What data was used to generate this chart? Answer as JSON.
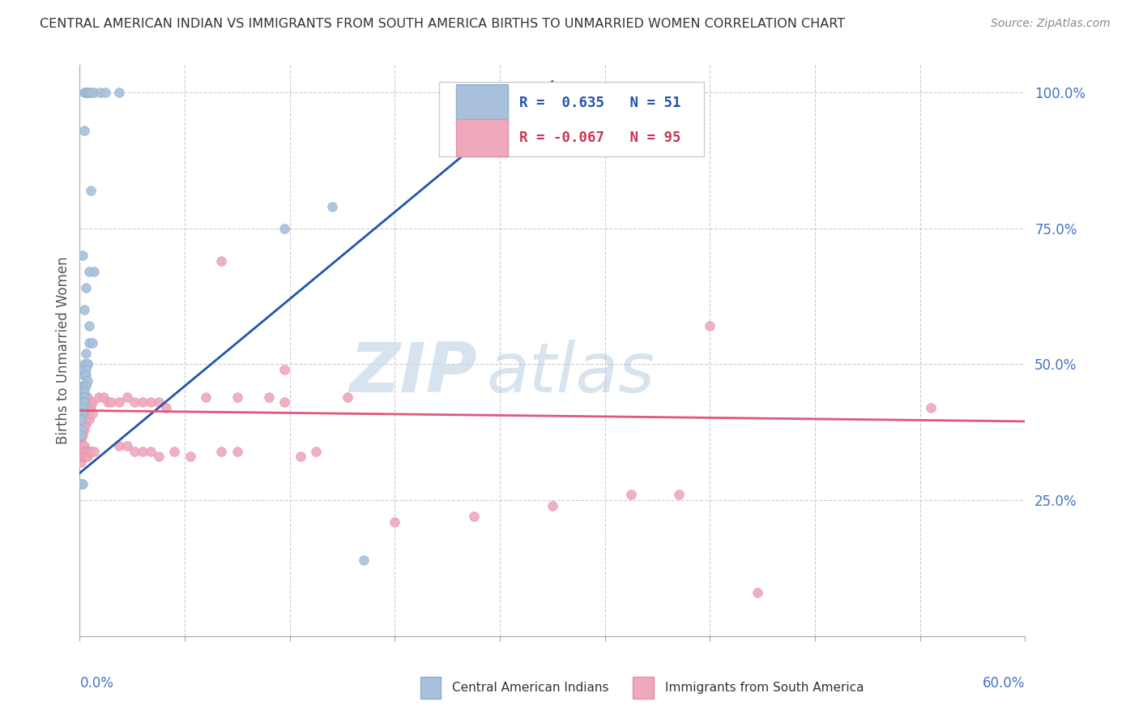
{
  "title": "CENTRAL AMERICAN INDIAN VS IMMIGRANTS FROM SOUTH AMERICA BIRTHS TO UNMARRIED WOMEN CORRELATION CHART",
  "source": "Source: ZipAtlas.com",
  "ylabel": "Births to Unmarried Women",
  "legend_blue_label": "Central American Indians",
  "legend_pink_label": "Immigrants from South America",
  "blue_color": "#a8c0dc",
  "blue_edge_color": "#8aaece",
  "pink_color": "#f0a8bc",
  "pink_edge_color": "#e090a8",
  "blue_line_color": "#2255aa",
  "pink_line_color": "#e05878",
  "watermark_zip": "ZIP",
  "watermark_atlas": "atlas",
  "blue_scatter": [
    [
      0.003,
      1.0
    ],
    [
      0.004,
      1.0
    ],
    [
      0.005,
      1.0
    ],
    [
      0.006,
      1.0
    ],
    [
      0.007,
      1.0
    ],
    [
      0.009,
      1.0
    ],
    [
      0.013,
      1.0
    ],
    [
      0.016,
      1.0
    ],
    [
      0.003,
      0.93
    ],
    [
      0.007,
      0.82
    ],
    [
      0.002,
      0.7
    ],
    [
      0.006,
      0.67
    ],
    [
      0.009,
      0.67
    ],
    [
      0.004,
      0.64
    ],
    [
      0.003,
      0.6
    ],
    [
      0.006,
      0.57
    ],
    [
      0.006,
      0.54
    ],
    [
      0.008,
      0.54
    ],
    [
      0.004,
      0.52
    ],
    [
      0.003,
      0.5
    ],
    [
      0.005,
      0.5
    ],
    [
      0.005,
      0.5
    ],
    [
      0.002,
      0.49
    ],
    [
      0.004,
      0.49
    ],
    [
      0.003,
      0.48
    ],
    [
      0.004,
      0.48
    ],
    [
      0.005,
      0.47
    ],
    [
      0.002,
      0.46
    ],
    [
      0.003,
      0.46
    ],
    [
      0.004,
      0.46
    ],
    [
      0.002,
      0.45
    ],
    [
      0.003,
      0.45
    ],
    [
      0.002,
      0.44
    ],
    [
      0.003,
      0.44
    ],
    [
      0.001,
      0.43
    ],
    [
      0.002,
      0.43
    ],
    [
      0.003,
      0.43
    ],
    [
      0.001,
      0.42
    ],
    [
      0.002,
      0.42
    ],
    [
      0.001,
      0.41
    ],
    [
      0.002,
      0.41
    ],
    [
      0.001,
      0.4
    ],
    [
      0.001,
      0.4
    ],
    [
      0.001,
      0.38
    ],
    [
      0.001,
      0.37
    ],
    [
      0.001,
      0.28
    ],
    [
      0.002,
      0.28
    ],
    [
      0.16,
      0.79
    ],
    [
      0.13,
      0.75
    ],
    [
      0.18,
      0.14
    ],
    [
      0.025,
      1.0
    ]
  ],
  "pink_scatter": [
    [
      0.001,
      0.44
    ],
    [
      0.001,
      0.43
    ],
    [
      0.001,
      0.42
    ],
    [
      0.001,
      0.41
    ],
    [
      0.001,
      0.4
    ],
    [
      0.001,
      0.39
    ],
    [
      0.001,
      0.38
    ],
    [
      0.001,
      0.37
    ],
    [
      0.001,
      0.36
    ],
    [
      0.002,
      0.44
    ],
    [
      0.002,
      0.43
    ],
    [
      0.002,
      0.42
    ],
    [
      0.002,
      0.41
    ],
    [
      0.002,
      0.4
    ],
    [
      0.002,
      0.39
    ],
    [
      0.002,
      0.38
    ],
    [
      0.002,
      0.37
    ],
    [
      0.003,
      0.44
    ],
    [
      0.003,
      0.43
    ],
    [
      0.003,
      0.42
    ],
    [
      0.003,
      0.41
    ],
    [
      0.003,
      0.4
    ],
    [
      0.003,
      0.39
    ],
    [
      0.003,
      0.38
    ],
    [
      0.004,
      0.44
    ],
    [
      0.004,
      0.43
    ],
    [
      0.004,
      0.42
    ],
    [
      0.004,
      0.41
    ],
    [
      0.004,
      0.4
    ],
    [
      0.004,
      0.39
    ],
    [
      0.005,
      0.44
    ],
    [
      0.005,
      0.43
    ],
    [
      0.005,
      0.42
    ],
    [
      0.005,
      0.41
    ],
    [
      0.006,
      0.43
    ],
    [
      0.006,
      0.42
    ],
    [
      0.006,
      0.4
    ],
    [
      0.007,
      0.43
    ],
    [
      0.007,
      0.42
    ],
    [
      0.008,
      0.43
    ],
    [
      0.008,
      0.41
    ],
    [
      0.001,
      0.35
    ],
    [
      0.001,
      0.34
    ],
    [
      0.001,
      0.33
    ],
    [
      0.001,
      0.32
    ],
    [
      0.002,
      0.35
    ],
    [
      0.002,
      0.34
    ],
    [
      0.002,
      0.33
    ],
    [
      0.003,
      0.35
    ],
    [
      0.003,
      0.34
    ],
    [
      0.003,
      0.33
    ],
    [
      0.004,
      0.34
    ],
    [
      0.004,
      0.33
    ],
    [
      0.005,
      0.34
    ],
    [
      0.005,
      0.33
    ],
    [
      0.006,
      0.34
    ],
    [
      0.007,
      0.34
    ],
    [
      0.009,
      0.34
    ],
    [
      0.012,
      0.44
    ],
    [
      0.015,
      0.44
    ],
    [
      0.018,
      0.43
    ],
    [
      0.02,
      0.43
    ],
    [
      0.025,
      0.43
    ],
    [
      0.03,
      0.44
    ],
    [
      0.035,
      0.43
    ],
    [
      0.04,
      0.43
    ],
    [
      0.045,
      0.43
    ],
    [
      0.05,
      0.43
    ],
    [
      0.055,
      0.42
    ],
    [
      0.025,
      0.35
    ],
    [
      0.03,
      0.35
    ],
    [
      0.035,
      0.34
    ],
    [
      0.04,
      0.34
    ],
    [
      0.045,
      0.34
    ],
    [
      0.05,
      0.33
    ],
    [
      0.06,
      0.34
    ],
    [
      0.07,
      0.33
    ],
    [
      0.09,
      0.34
    ],
    [
      0.1,
      0.34
    ],
    [
      0.08,
      0.44
    ],
    [
      0.1,
      0.44
    ],
    [
      0.12,
      0.44
    ],
    [
      0.13,
      0.43
    ],
    [
      0.14,
      0.33
    ],
    [
      0.15,
      0.34
    ],
    [
      0.17,
      0.44
    ],
    [
      0.13,
      0.49
    ],
    [
      0.09,
      0.69
    ],
    [
      0.54,
      0.42
    ],
    [
      0.4,
      0.57
    ],
    [
      0.35,
      0.26
    ],
    [
      0.3,
      0.24
    ],
    [
      0.25,
      0.22
    ],
    [
      0.2,
      0.21
    ],
    [
      0.38,
      0.26
    ],
    [
      0.43,
      0.08
    ]
  ],
  "blue_line_x0": 0.0,
  "blue_line_y0": 0.3,
  "blue_line_x1": 0.3,
  "blue_line_y1": 1.02,
  "pink_line_x0": 0.0,
  "pink_line_y0": 0.415,
  "pink_line_x1": 0.6,
  "pink_line_y1": 0.395,
  "xlim": [
    0.0,
    0.6
  ],
  "ylim": [
    0.0,
    1.05
  ],
  "yticks": [
    0.25,
    0.5,
    0.75,
    1.0
  ],
  "ytick_labels": [
    "25.0%",
    "50.0%",
    "75.0%",
    "100.0%"
  ],
  "grid_color": "#cccccc",
  "marker_size": 70,
  "title_fontsize": 11.5,
  "source_fontsize": 10,
  "tick_fontsize": 12,
  "ylabel_fontsize": 12,
  "legend_fontsize": 12.5
}
